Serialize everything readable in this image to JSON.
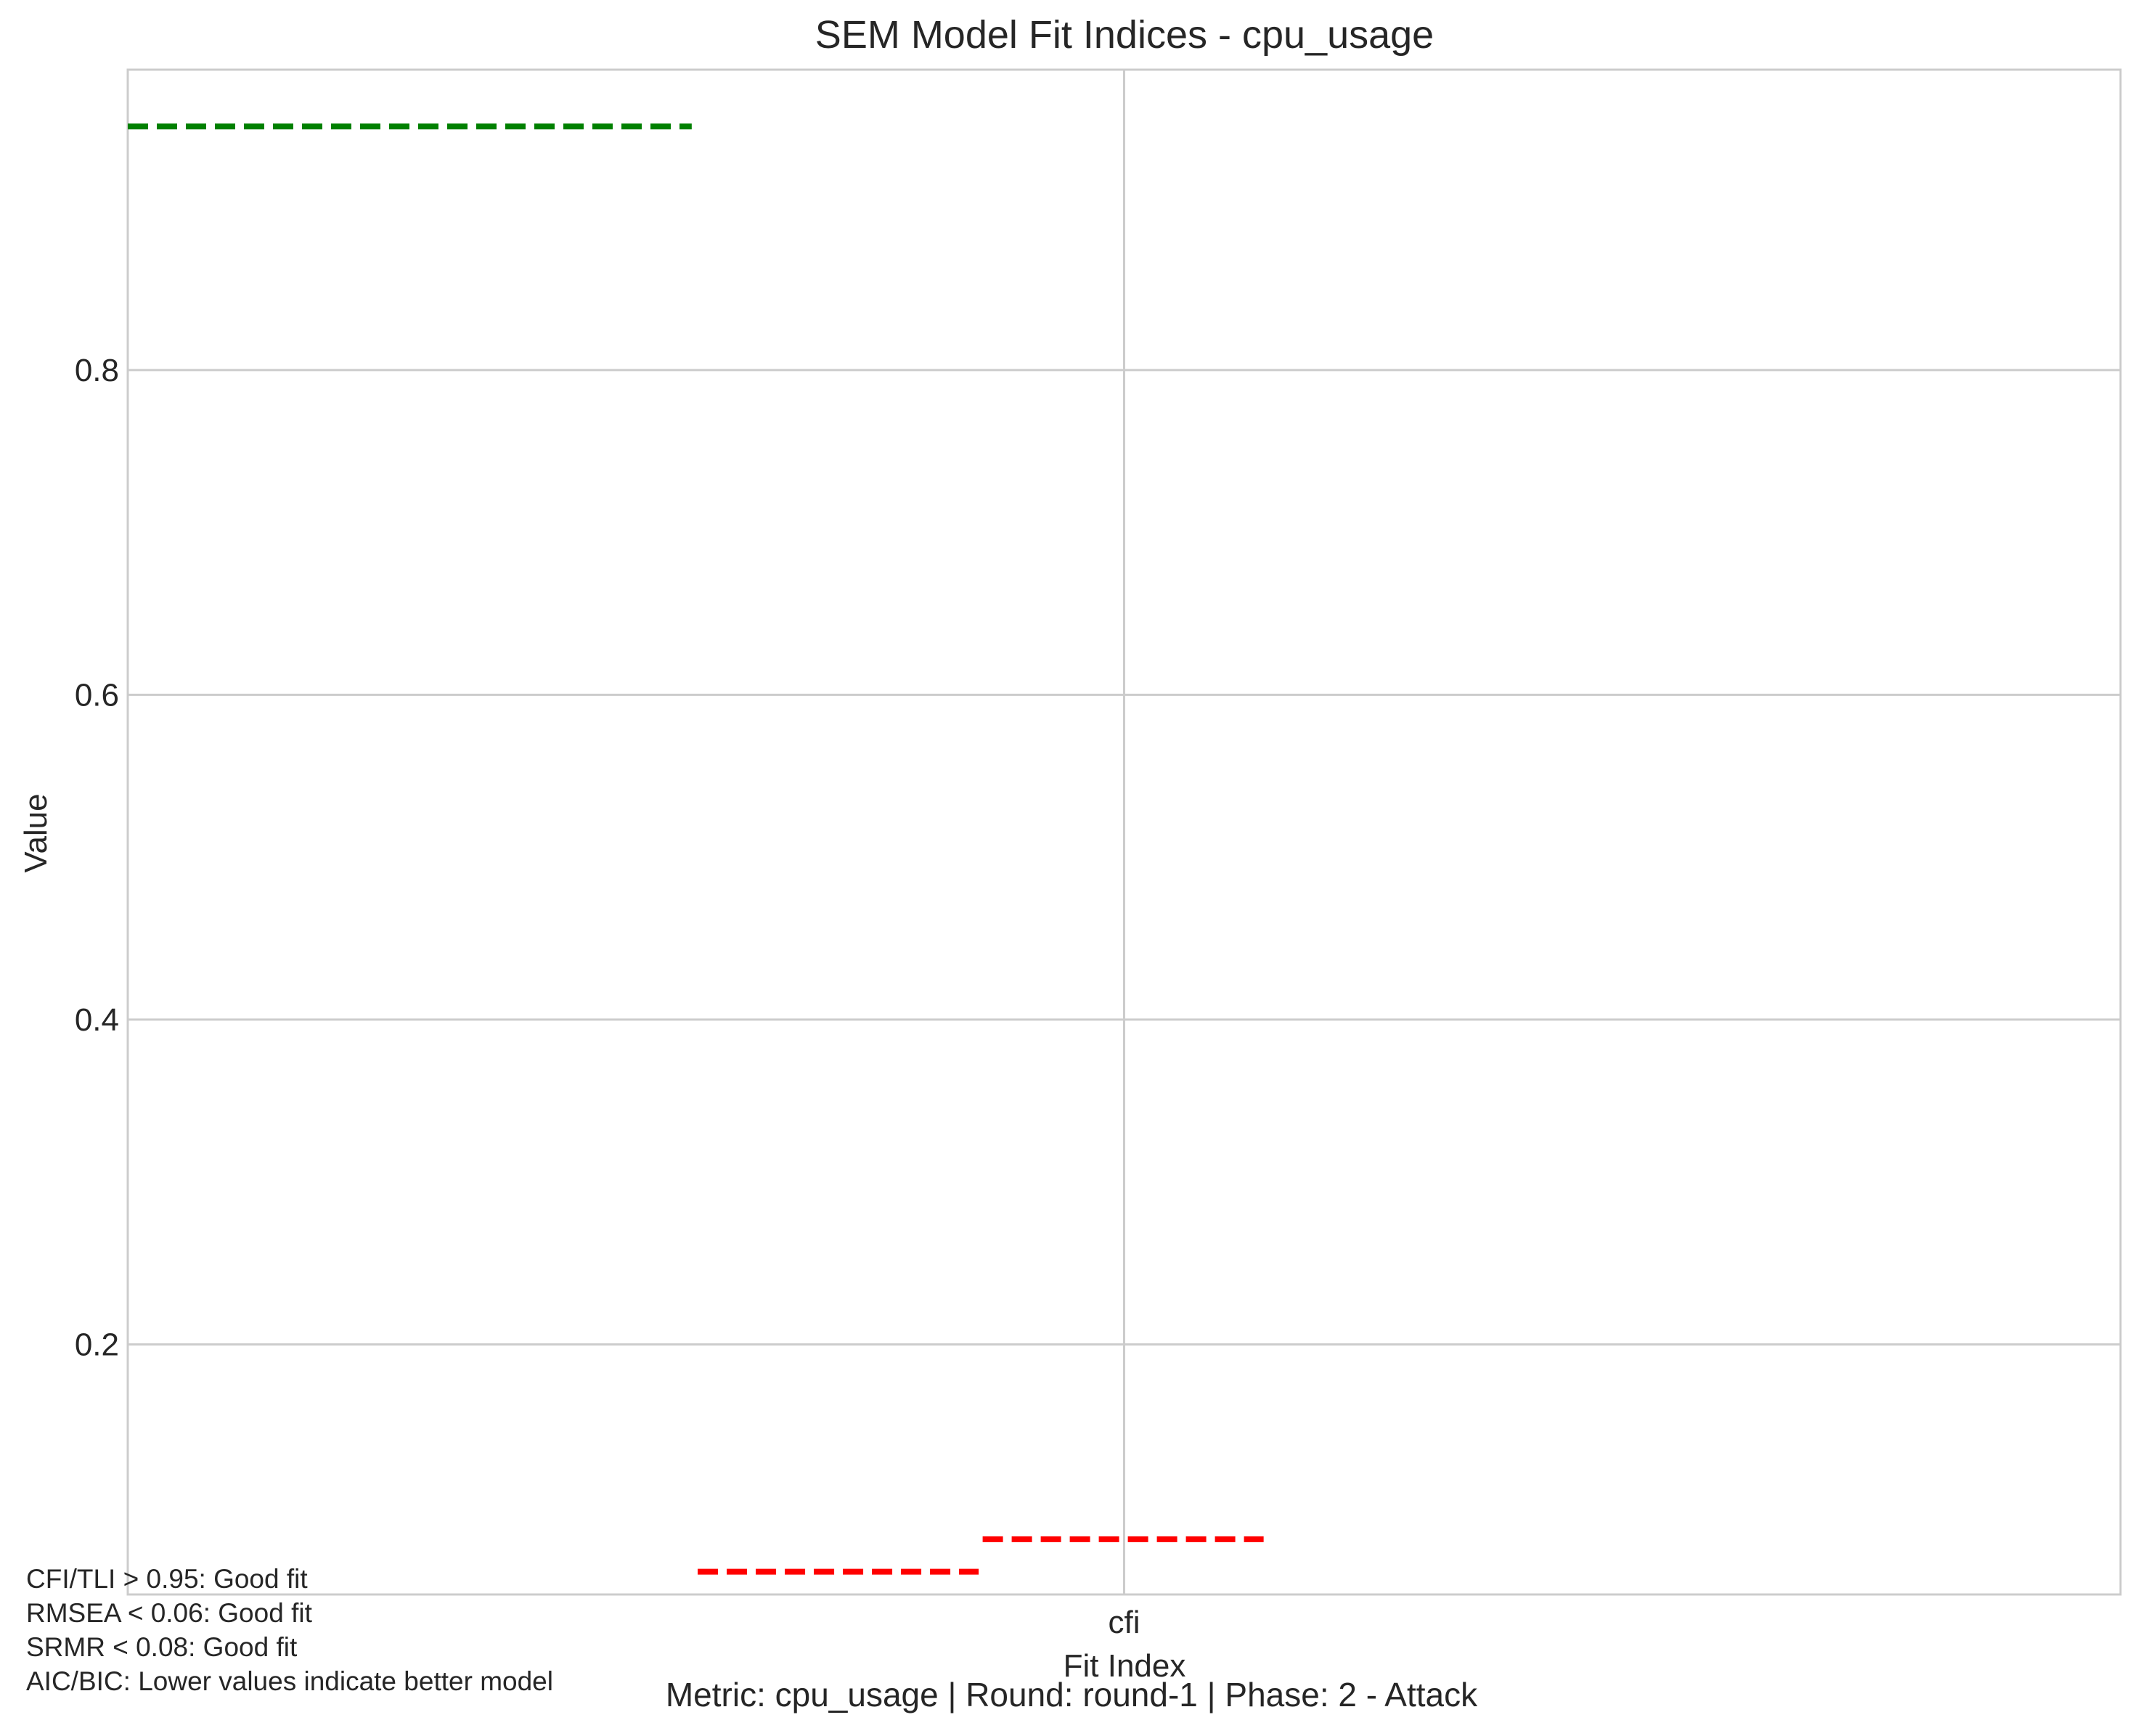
{
  "chart_data": {
    "type": "line",
    "title": "SEM Model Fit Indices - cpu_usage",
    "xlabel": "Fit Index",
    "ylabel": "Value",
    "categories": [
      "cfi"
    ],
    "x_range": [
      -0.5,
      0.5
    ],
    "ylim": [
      0.046,
      0.985
    ],
    "y_ticks": [
      0.2,
      0.4,
      0.6,
      0.8
    ],
    "y_tick_labels": [
      "0.2",
      "0.4",
      "0.6",
      "0.8"
    ],
    "grid": true,
    "reference_lines": [
      {
        "color": "#008000",
        "y": 0.95,
        "x_start": -0.5,
        "x_end": -0.217,
        "style": "dashed"
      },
      {
        "color": "#ff0000",
        "y": 0.06,
        "x_start": -0.214,
        "x_end": -0.073,
        "style": "dashed"
      },
      {
        "color": "#ff0000",
        "y": 0.08,
        "x_start": -0.071,
        "x_end": 0.07,
        "style": "dashed"
      }
    ],
    "annotations": [
      "CFI/TLI > 0.95: Good fit",
      "RMSEA < 0.06: Good fit",
      "SRMR < 0.08: Good fit",
      "AIC/BIC: Lower values indicate better model"
    ],
    "footer": "Metric: cpu_usage | Round: round-1 | Phase: 2 - Attack"
  }
}
